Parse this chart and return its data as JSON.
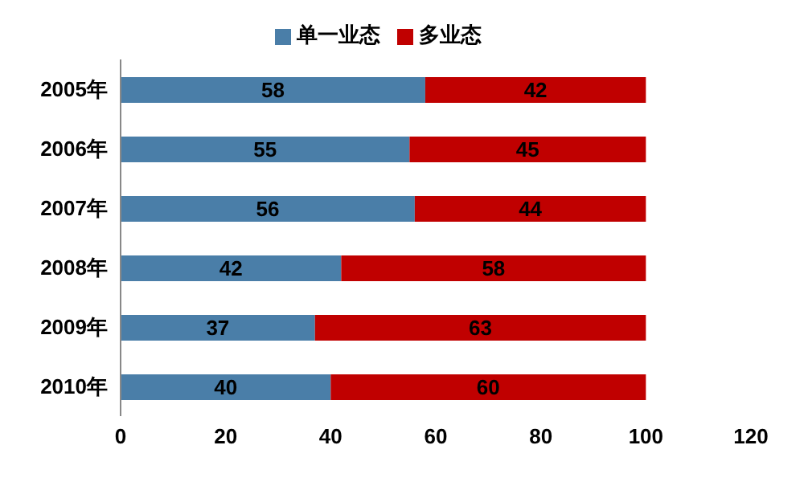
{
  "chart_data": {
    "type": "bar",
    "orientation": "horizontal",
    "stacked": true,
    "categories": [
      "2005年",
      "2006年",
      "2007年",
      "2008年",
      "2009年",
      "2010年"
    ],
    "series": [
      {
        "name": "单一业态",
        "color": "#4a7ea8",
        "values": [
          58,
          55,
          56,
          42,
          37,
          40
        ]
      },
      {
        "name": "多业态",
        "color": "#c00000",
        "values": [
          42,
          45,
          44,
          58,
          63,
          60
        ]
      }
    ],
    "xlim": [
      0,
      120
    ],
    "xticks": [
      0,
      20,
      40,
      60,
      80,
      100,
      120
    ],
    "data_labels": true,
    "legend": "top",
    "grid": false
  }
}
